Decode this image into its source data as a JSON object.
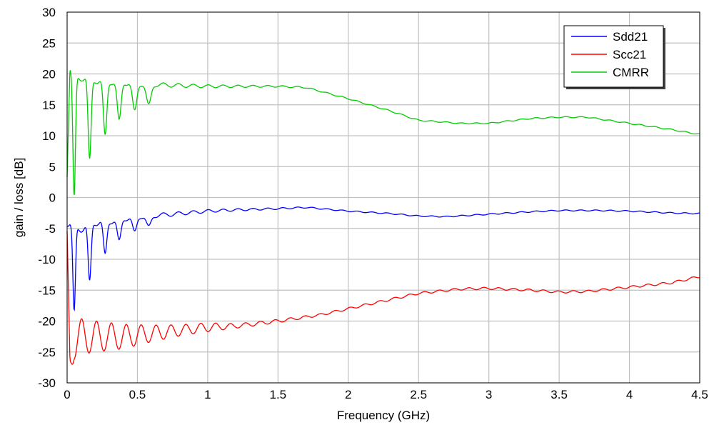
{
  "chart_data": {
    "type": "line",
    "title": "",
    "xlabel": "Frequency (GHz)",
    "ylabel": "gain  /  loss [dB]",
    "xlim": [
      0,
      4.5
    ],
    "ylim": [
      -30,
      30
    ],
    "x_ticks": [
      0,
      0.5,
      1,
      1.5,
      2,
      2.5,
      3,
      3.5,
      4,
      4.5
    ],
    "x_tick_labels": [
      "0",
      "0.5",
      "1",
      "1.5",
      "2",
      "2.5",
      "3",
      "3.5",
      "4",
      "4.5"
    ],
    "y_ticks": [
      30,
      25,
      20,
      15,
      10,
      5,
      0,
      -5,
      -10,
      -15,
      -20,
      -25,
      -30
    ],
    "y_tick_labels": [
      "30",
      "25",
      "20",
      "15",
      "10",
      "5",
      "0",
      "-5",
      "-10",
      "-15",
      "-20",
      "-25",
      "-30"
    ],
    "grid": true,
    "legend_position": "top-right",
    "series": [
      {
        "name": "Sdd21",
        "color": "#0000ff",
        "x": [
          0,
          0.02,
          0.05,
          0.1,
          0.15,
          0.2,
          0.3,
          0.5,
          0.7,
          1.0,
          1.2,
          1.5,
          1.7,
          2.0,
          2.3,
          2.5,
          2.7,
          3.0,
          3.3,
          3.5,
          3.8,
          4.0,
          4.3,
          4.5
        ],
        "y": [
          -4.0,
          -4.2,
          -5.0,
          -5.0,
          -4.5,
          -4.0,
          -3.8,
          -3.0,
          -2.8,
          -2.2,
          -2.0,
          -1.8,
          -1.6,
          -2.2,
          -2.6,
          -3.0,
          -3.1,
          -2.7,
          -2.3,
          -2.1,
          -2.1,
          -2.2,
          -2.5,
          -2.6
        ],
        "dips": [
          [
            0.05,
            -19
          ],
          [
            0.16,
            -14
          ],
          [
            0.27,
            -9.5
          ],
          [
            0.37,
            -7.3
          ],
          [
            0.48,
            -5.8
          ],
          [
            0.58,
            -4.9
          ]
        ]
      },
      {
        "name": "Scc21",
        "color": "#ff0000",
        "x": [
          0,
          0.02,
          0.05,
          0.1,
          0.2,
          0.4,
          0.6,
          0.8,
          1.0,
          1.2,
          1.5,
          1.8,
          2.0,
          2.2,
          2.5,
          2.8,
          3.0,
          3.3,
          3.5,
          3.7,
          4.0,
          4.3,
          4.5
        ],
        "y": [
          -9.0,
          -27.0,
          -23.0,
          -22.5,
          -22.5,
          -22.5,
          -22.0,
          -21.5,
          -21.0,
          -20.8,
          -20.0,
          -19.0,
          -18.0,
          -17.0,
          -15.5,
          -14.8,
          -14.7,
          -15.0,
          -15.3,
          -15.2,
          -14.5,
          -13.8,
          -12.8
        ],
        "ripple_amp": [
          4.0,
          3.5,
          3.5,
          3.2,
          2.8,
          2.2,
          1.5,
          1.0,
          0.8,
          0.4,
          0.3,
          0.2,
          0.2,
          0.2,
          0.2,
          0.2,
          0.2,
          0.2,
          0.2,
          0.2,
          0.2,
          0.2,
          0.2
        ]
      },
      {
        "name": "CMRR",
        "color": "#00cc00",
        "x": [
          0,
          0.02,
          0.05,
          0.1,
          0.2,
          0.3,
          0.5,
          0.7,
          1.0,
          1.2,
          1.5,
          1.7,
          2.0,
          2.3,
          2.5,
          2.8,
          3.0,
          3.3,
          3.5,
          3.7,
          4.0,
          4.3,
          4.5
        ],
        "y": [
          4.0,
          21.0,
          19.5,
          19.5,
          19.0,
          18.8,
          18.5,
          18.2,
          18.0,
          18.0,
          18.0,
          17.8,
          16.0,
          14.0,
          12.5,
          12.0,
          12.0,
          12.8,
          13.0,
          13.0,
          12.0,
          11.0,
          10.2
        ],
        "dips": [
          [
            0.05,
            -0.5
          ],
          [
            0.16,
            5.7
          ],
          [
            0.27,
            9.7
          ],
          [
            0.37,
            12.2
          ],
          [
            0.48,
            13.8
          ],
          [
            0.58,
            14.8
          ]
        ]
      }
    ]
  }
}
